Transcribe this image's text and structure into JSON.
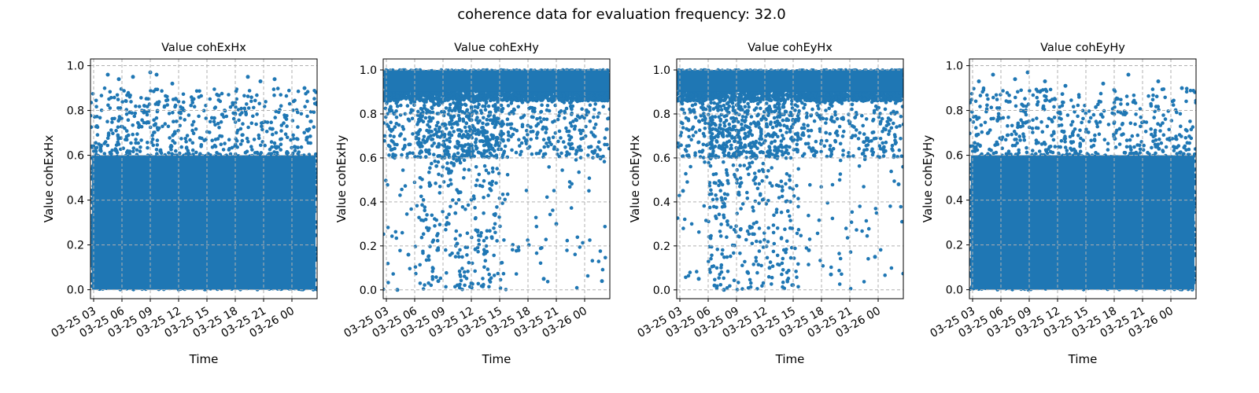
{
  "figure": {
    "suptitle": "coherence data for evaluation frequency: 32.0"
  },
  "colors": {
    "points": "#1f77b4",
    "grid": "#b0b0b0",
    "axes": "#000000"
  },
  "chart_data": [
    {
      "type": "scatter",
      "title": "Value cohExHx",
      "xlabel": "Time",
      "ylabel": "Value cohExHx",
      "ylim": [
        -0.04,
        1.03
      ],
      "xlim": [
        "2016-03-25 02:40",
        "2016-03-26 02:40"
      ],
      "yticks": [
        "0.0",
        "0.2",
        "0.4",
        "0.6",
        "0.8",
        "1.0"
      ],
      "xticks": [
        "03-25 03",
        "03-25 06",
        "03-25 09",
        "03-25 12",
        "03-25 15",
        "03-25 18",
        "03-25 21",
        "03-26 00"
      ],
      "grid": true,
      "profile": "uniform",
      "density_band": [
        0.0,
        0.6
      ],
      "outliers": [
        [
          "2016-03-25 04:30",
          0.96
        ],
        [
          "2016-03-25 05:40",
          0.94
        ],
        [
          "2016-03-25 07:10",
          0.95
        ],
        [
          "2016-03-25 09:00",
          0.97
        ],
        [
          "2016-03-25 09:40",
          0.96
        ],
        [
          "2016-03-25 11:20",
          0.92
        ],
        [
          "2016-03-25 19:20",
          0.95
        ],
        [
          "2016-03-25 20:40",
          0.93
        ],
        [
          "2016-03-25 22:10",
          0.94
        ],
        [
          "2016-03-26 01:20",
          0.9
        ]
      ]
    },
    {
      "type": "scatter",
      "title": "Value cohExHy",
      "xlabel": "Time",
      "ylabel": "Value cohExHy",
      "ylim": [
        -0.04,
        1.05
      ],
      "xlim": [
        "2016-03-25 02:40",
        "2016-03-26 02:40"
      ],
      "yticks": [
        "0.0",
        "0.2",
        "0.4",
        "0.6",
        "0.8",
        "1.0"
      ],
      "xticks": [
        "03-25 03",
        "03-25 06",
        "03-25 09",
        "03-25 12",
        "03-25 15",
        "03-25 18",
        "03-25 21",
        "03-26 00"
      ],
      "grid": true,
      "profile": "high",
      "dip_window": [
        "2016-03-25 06:20",
        "2016-03-25 15:30"
      ],
      "outliers": [
        [
          "2016-03-25 04:10",
          0.0
        ],
        [
          "2016-03-25 05:20",
          0.16
        ],
        [
          "2016-03-25 08:30",
          0.04
        ],
        [
          "2016-03-25 10:30",
          0.21
        ],
        [
          "2016-03-25 12:00",
          0.03
        ],
        [
          "2016-03-25 14:10",
          0.24
        ],
        [
          "2016-03-25 17:00",
          0.18
        ],
        [
          "2016-03-25 19:40",
          0.05
        ],
        [
          "2016-03-25 21:00",
          0.3
        ],
        [
          "2016-03-26 01:50",
          0.04
        ]
      ]
    },
    {
      "type": "scatter",
      "title": "Value cohEyHx",
      "xlabel": "Time",
      "ylabel": "Value cohEyHx",
      "ylim": [
        -0.04,
        1.05
      ],
      "xlim": [
        "2016-03-25 02:40",
        "2016-03-26 02:40"
      ],
      "yticks": [
        "0.0",
        "0.2",
        "0.4",
        "0.6",
        "0.8",
        "1.0"
      ],
      "xticks": [
        "03-25 03",
        "03-25 06",
        "03-25 09",
        "03-25 12",
        "03-25 15",
        "03-25 18",
        "03-25 21",
        "03-26 00"
      ],
      "grid": true,
      "profile": "high",
      "dip_window": [
        "2016-03-25 06:00",
        "2016-03-25 15:40"
      ],
      "outliers": [
        [
          "2016-03-25 03:20",
          0.45
        ],
        [
          "2016-03-25 05:00",
          0.05
        ],
        [
          "2016-03-25 06:40",
          0.02
        ],
        [
          "2016-03-25 07:40",
          0.0
        ],
        [
          "2016-03-25 10:10",
          0.08
        ],
        [
          "2016-03-25 12:30",
          0.1
        ],
        [
          "2016-03-25 16:40",
          0.18
        ],
        [
          "2016-03-25 19:00",
          0.07
        ],
        [
          "2016-03-25 23:40",
          0.15
        ],
        [
          "2016-03-26 02:10",
          0.48
        ]
      ]
    },
    {
      "type": "scatter",
      "title": "Value cohEyHy",
      "xlabel": "Time",
      "ylabel": "Value cohEyHy",
      "ylim": [
        -0.04,
        1.03
      ],
      "xlim": [
        "2016-03-25 02:40",
        "2016-03-26 02:40"
      ],
      "yticks": [
        "0.0",
        "0.2",
        "0.4",
        "0.6",
        "0.8",
        "1.0"
      ],
      "xticks": [
        "03-25 03",
        "03-25 06",
        "03-25 09",
        "03-25 12",
        "03-25 15",
        "03-25 18",
        "03-25 21",
        "03-26 00"
      ],
      "grid": true,
      "profile": "uniform",
      "density_band": [
        0.0,
        0.6
      ],
      "outliers": [
        [
          "2016-03-25 03:40",
          0.93
        ],
        [
          "2016-03-25 05:10",
          0.96
        ],
        [
          "2016-03-25 07:30",
          0.94
        ],
        [
          "2016-03-25 08:50",
          0.97
        ],
        [
          "2016-03-25 10:40",
          0.93
        ],
        [
          "2016-03-25 12:50",
          0.91
        ],
        [
          "2016-03-25 16:50",
          0.92
        ],
        [
          "2016-03-25 19:30",
          0.96
        ],
        [
          "2016-03-25 22:40",
          0.93
        ],
        [
          "2016-03-26 01:10",
          0.9
        ]
      ]
    }
  ]
}
